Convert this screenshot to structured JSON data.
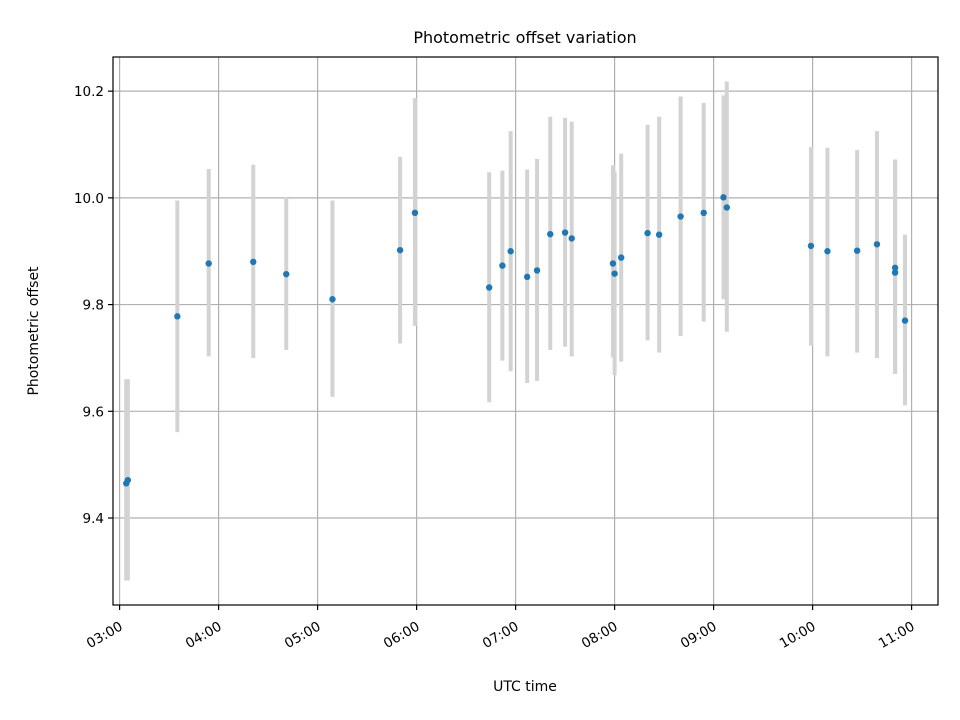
{
  "chart_data": {
    "type": "scatter",
    "title": "Photometric offset variation",
    "xlabel": "UTC time",
    "ylabel": "Photometric offset",
    "x_unit": "UTC clock time (HH:MM)",
    "xlim": [
      "02:56",
      "11:16"
    ],
    "ylim": [
      9.237,
      10.264
    ],
    "x_tick_labels": [
      "03:00",
      "04:00",
      "05:00",
      "06:00",
      "07:00",
      "08:00",
      "09:00",
      "10:00",
      "11:00"
    ],
    "y_tick_labels": [
      "9.4",
      "9.6",
      "9.8",
      "10.0",
      "10.2"
    ],
    "grid": true,
    "colors": {
      "marker": "#1f77b4",
      "errorbar": "#d3d3d3",
      "grid": "#b0b0b0"
    },
    "series": [
      {
        "points": [
          {
            "x": "03:04",
            "y": 9.465,
            "ylow": 9.283,
            "yhigh": 9.66
          },
          {
            "x": "03:05",
            "y": 9.471,
            "ylow": 9.283,
            "yhigh": 9.66
          },
          {
            "x": "03:35",
            "y": 9.778,
            "ylow": 9.561,
            "yhigh": 9.995
          },
          {
            "x": "03:54",
            "y": 9.877,
            "ylow": 9.703,
            "yhigh": 10.054
          },
          {
            "x": "04:21",
            "y": 9.88,
            "ylow": 9.7,
            "yhigh": 10.062
          },
          {
            "x": "04:41",
            "y": 9.857,
            "ylow": 9.715,
            "yhigh": 10.001
          },
          {
            "x": "05:09",
            "y": 9.81,
            "ylow": 9.627,
            "yhigh": 9.995
          },
          {
            "x": "05:50",
            "y": 9.902,
            "ylow": 9.727,
            "yhigh": 10.077
          },
          {
            "x": "05:59",
            "y": 9.972,
            "ylow": 9.76,
            "yhigh": 10.187
          },
          {
            "x": "06:44",
            "y": 9.832,
            "ylow": 9.617,
            "yhigh": 10.048
          },
          {
            "x": "06:52",
            "y": 9.873,
            "ylow": 9.695,
            "yhigh": 10.051
          },
          {
            "x": "06:57",
            "y": 9.9,
            "ylow": 9.675,
            "yhigh": 10.125
          },
          {
            "x": "07:07",
            "y": 9.852,
            "ylow": 9.653,
            "yhigh": 10.053
          },
          {
            "x": "07:13",
            "y": 9.864,
            "ylow": 9.657,
            "yhigh": 10.073
          },
          {
            "x": "07:21",
            "y": 9.932,
            "ylow": 9.715,
            "yhigh": 10.152
          },
          {
            "x": "07:30",
            "y": 9.935,
            "ylow": 9.721,
            "yhigh": 10.15
          },
          {
            "x": "07:34",
            "y": 9.924,
            "ylow": 9.703,
            "yhigh": 10.143
          },
          {
            "x": "07:59",
            "y": 9.877,
            "ylow": 9.701,
            "yhigh": 10.061
          },
          {
            "x": "08:00",
            "y": 9.858,
            "ylow": 9.668,
            "yhigh": 10.049
          },
          {
            "x": "08:04",
            "y": 9.888,
            "ylow": 9.693,
            "yhigh": 10.083
          },
          {
            "x": "08:20",
            "y": 9.934,
            "ylow": 9.733,
            "yhigh": 10.137
          },
          {
            "x": "08:27",
            "y": 9.931,
            "ylow": 9.71,
            "yhigh": 10.152
          },
          {
            "x": "08:40",
            "y": 9.965,
            "ylow": 9.741,
            "yhigh": 10.19
          },
          {
            "x": "08:54",
            "y": 9.972,
            "ylow": 9.768,
            "yhigh": 10.178
          },
          {
            "x": "09:06",
            "y": 10.001,
            "ylow": 9.81,
            "yhigh": 10.192
          },
          {
            "x": "09:08",
            "y": 9.982,
            "ylow": 9.749,
            "yhigh": 10.218
          },
          {
            "x": "09:59",
            "y": 9.91,
            "ylow": 9.723,
            "yhigh": 10.095
          },
          {
            "x": "10:09",
            "y": 9.9,
            "ylow": 9.703,
            "yhigh": 10.094
          },
          {
            "x": "10:27",
            "y": 9.901,
            "ylow": 9.71,
            "yhigh": 10.09
          },
          {
            "x": "10:39",
            "y": 9.913,
            "ylow": 9.7,
            "yhigh": 10.125
          },
          {
            "x": "10:50",
            "y": 9.869,
            "ylow": 9.67,
            "yhigh": 10.072
          },
          {
            "x": "10:50",
            "y": 9.86,
            "ylow": 9.67,
            "yhigh": 10.072
          },
          {
            "x": "10:56",
            "y": 9.77,
            "ylow": 9.611,
            "yhigh": 9.931
          }
        ]
      }
    ]
  }
}
